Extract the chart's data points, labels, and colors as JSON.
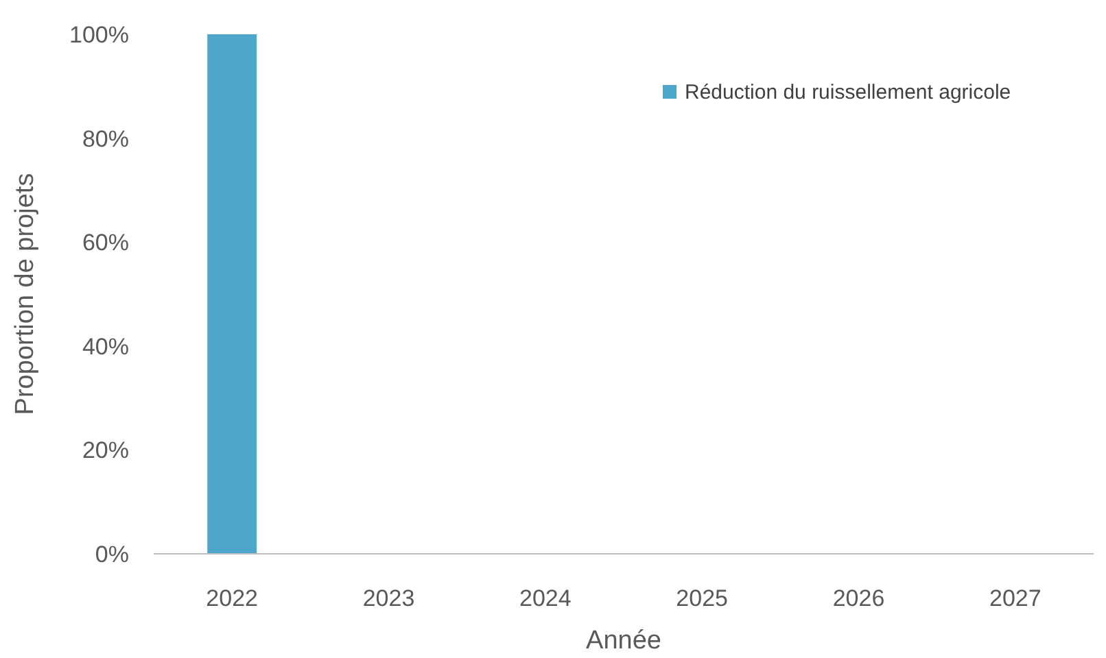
{
  "chart_data": {
    "type": "bar",
    "xlabel": "Année",
    "ylabel": "Proportion de projets",
    "categories": [
      "2022",
      "2023",
      "2024",
      "2025",
      "2026",
      "2027"
    ],
    "series": [
      {
        "name": "Réduction du ruissellement agricole",
        "color": "#4ea7cb",
        "values": [
          100,
          0,
          0,
          0,
          0,
          0
        ]
      }
    ],
    "ylim": [
      0,
      100
    ],
    "yticks": [
      {
        "value": 0,
        "label": "0%"
      },
      {
        "value": 20,
        "label": "20%"
      },
      {
        "value": 40,
        "label": "40%"
      },
      {
        "value": 60,
        "label": "60%"
      },
      {
        "value": 80,
        "label": "80%"
      },
      {
        "value": 100,
        "label": "100%"
      }
    ],
    "legend": "top right"
  }
}
